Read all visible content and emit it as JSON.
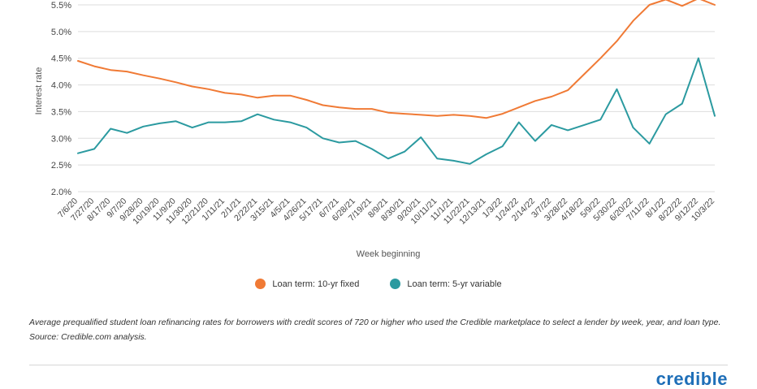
{
  "chart_data": {
    "type": "line",
    "ylabel": "Interest rate",
    "xlabel": "Week beginning",
    "ylim": [
      1.9,
      5.6
    ],
    "yticks": [
      2.0,
      2.5,
      3.0,
      3.5,
      4.0,
      4.5,
      5.0,
      5.5
    ],
    "ytick_labels": [
      "2.0%",
      "2.5%",
      "3.0%",
      "3.5%",
      "4.0%",
      "4.5%",
      "5.0%",
      "5.5%"
    ],
    "grid": true,
    "legend_position": "bottom",
    "x": [
      "7/6/20",
      "7/27/20",
      "8/17/20",
      "9/7/20",
      "9/28/20",
      "10/19/20",
      "11/9/20",
      "11/30/20",
      "12/21/20",
      "1/11/21",
      "2/1/21",
      "2/22/21",
      "3/15/21",
      "4/5/21",
      "4/26/21",
      "5/17/21",
      "6/7/21",
      "6/28/21",
      "7/19/21",
      "8/9/21",
      "8/30/21",
      "9/20/21",
      "10/11/21",
      "11/1/21",
      "11/22/21",
      "12/13/21",
      "1/3/22",
      "1/24/22",
      "2/14/22",
      "3/7/22",
      "3/28/22",
      "4/18/22",
      "5/9/22",
      "5/30/22",
      "6/20/22",
      "7/11/22",
      "8/1/22",
      "8/22/22",
      "9/12/22",
      "10/3/22"
    ],
    "series": [
      {
        "name": "Loan term: 10-yr fixed",
        "color": "#f07a35",
        "values": [
          4.45,
          4.35,
          4.28,
          4.25,
          4.18,
          4.12,
          4.05,
          3.97,
          3.92,
          3.85,
          3.82,
          3.76,
          3.8,
          3.8,
          3.72,
          3.62,
          3.58,
          3.55,
          3.55,
          3.48,
          3.46,
          3.44,
          3.42,
          3.44,
          3.42,
          3.38,
          3.46,
          3.58,
          3.7,
          3.78,
          3.9,
          4.2,
          4.5,
          4.82,
          5.2,
          5.5,
          5.6,
          5.48,
          5.62,
          5.5
        ]
      },
      {
        "name": "Loan term: 5-yr variable",
        "color": "#2b9aa0",
        "values": [
          2.72,
          2.8,
          3.18,
          3.1,
          3.22,
          3.28,
          3.32,
          3.2,
          3.3,
          3.3,
          3.32,
          3.45,
          3.35,
          3.3,
          3.2,
          3.0,
          2.92,
          2.95,
          2.8,
          2.62,
          2.75,
          3.02,
          2.62,
          2.58,
          2.52,
          2.7,
          2.85,
          3.3,
          2.95,
          3.25,
          3.15,
          3.25,
          3.35,
          3.92,
          3.2,
          2.9,
          3.45,
          3.65,
          4.5,
          3.42
        ]
      }
    ]
  },
  "legend": {
    "fixed_label": "Loan term: 10-yr fixed",
    "variable_label": "Loan term: 5-yr variable",
    "fixed_color": "#f07a35",
    "variable_color": "#2b9aa0"
  },
  "caption": "Average prequalified student loan refinancing rates for borrowers with credit scores of 720 or higher who used the Credible marketplace to select a lender by week, year, and loan type. Source: Credible.com analysis.",
  "brand": "credible"
}
